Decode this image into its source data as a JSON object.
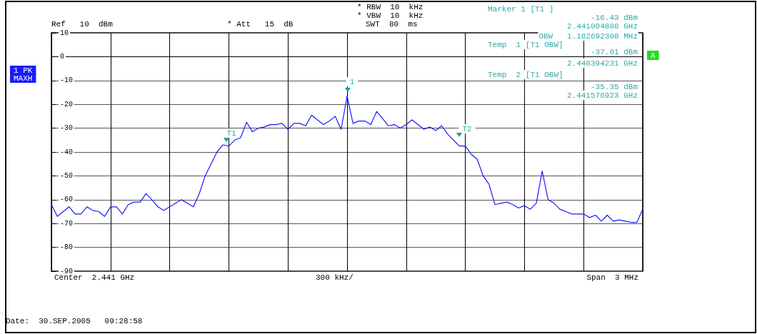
{
  "chart_data": {
    "type": "line",
    "color": "#1a1aff",
    "line_style": "solid",
    "grid": true,
    "tick_labels": "y",
    "ylim": [
      -90,
      10
    ],
    "yticks": [
      -90,
      -80,
      -70,
      -60,
      -50,
      -40,
      -30,
      -20,
      -10,
      0,
      10
    ],
    "categories": [
      null,
      null,
      null,
      null,
      null,
      null,
      null,
      null,
      null,
      null,
      null,
      null,
      null,
      null,
      null,
      null,
      null,
      null,
      null,
      null,
      null,
      null,
      null,
      null,
      null,
      null,
      null,
      null,
      null,
      null,
      null,
      null,
      null,
      null,
      null,
      null,
      null,
      null,
      null,
      null,
      null,
      null,
      null,
      null,
      null,
      null,
      null,
      null,
      null,
      null,
      null,
      null,
      null,
      null,
      null,
      null,
      null,
      null,
      null,
      null,
      null,
      null,
      null,
      null,
      null,
      null,
      null,
      null,
      null,
      null,
      null,
      null,
      null,
      null,
      null,
      null,
      null,
      null,
      null,
      null,
      null,
      null,
      null,
      null,
      null,
      null,
      null,
      null,
      null,
      null,
      null,
      null,
      null,
      null,
      null,
      null,
      null,
      null,
      null,
      null,
      null
    ],
    "values": [
      -62,
      -67,
      -65,
      -63,
      -66,
      -66,
      -63,
      -64.5,
      -65,
      -67,
      -63,
      -63,
      -66,
      -62,
      -61,
      -61,
      -57.5,
      -60,
      -63,
      -64.5,
      -63,
      -61.5,
      -60,
      -61.5,
      -63,
      -57.5,
      -50,
      -45,
      -40,
      -37,
      -37.5,
      -35,
      -34,
      -27.5,
      -31.5,
      -30,
      -29.5,
      -28.5,
      -28.5,
      -28,
      -30.5,
      -28,
      -28,
      -29,
      -24.5,
      -26.5,
      -28.5,
      -27,
      -25,
      -30.5,
      -16.5,
      -28,
      -27,
      -27,
      -28.5,
      -23,
      -26,
      -29,
      -28.5,
      -30,
      -28.5,
      -26.5,
      -28.5,
      -30.5,
      -29.5,
      -31,
      -29,
      -32.5,
      -35,
      -37.5,
      -37.5,
      -41,
      -43,
      -50,
      -53.5,
      -62,
      -61.5,
      -61,
      -62,
      -63.5,
      -62.5,
      -64,
      -61.5,
      -48,
      -60,
      -61.5,
      -64,
      -65,
      -66,
      -66,
      -66,
      -67.5,
      -66.5,
      -69,
      -66.5,
      -69,
      -68.5,
      -69,
      -69.5,
      -69.5,
      -64
    ],
    "annotations": [
      "Ref   10  dBm",
      "* Att   15  dB",
      "* RBW  10  kHz",
      "* VBW  10  kHz",
      "SWT  80  ms",
      "Marker 1 [T1 ]",
      "-16.43 dBm",
      "2.441004808 GHz",
      "OBW   1.182692308 MHz",
      "Temp  1 [T1 OBW]",
      "-37.01 dBm",
      "2.440394231 GHz",
      "Temp  2 [T1 OBW]",
      "-35.35 dBm",
      "2.441576923 GHz",
      "1 PK",
      "MAXH",
      "A",
      "Center  2.441 GHz",
      "300 kHz/",
      "Span  3 MHz",
      "Date:  30.SEP.2005   09:28:58",
      "1",
      "T1",
      "T2"
    ]
  }
}
